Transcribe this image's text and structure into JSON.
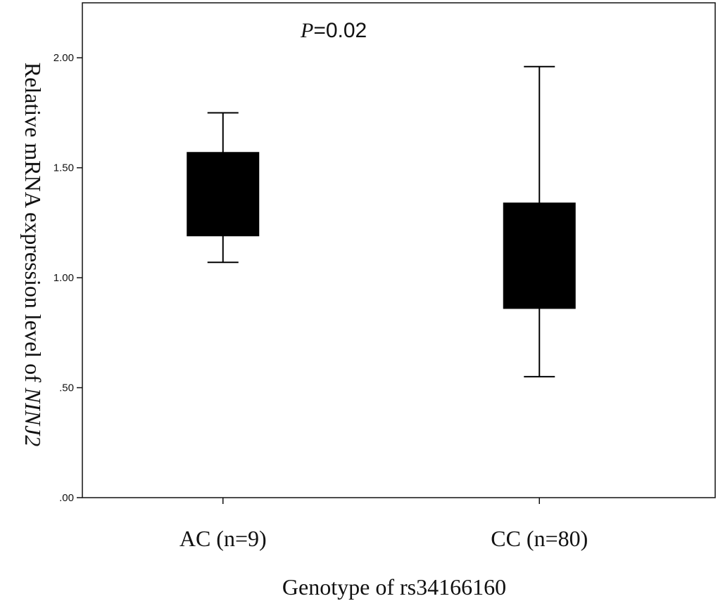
{
  "chart_data": {
    "type": "box",
    "xlabel": "Genotype of rs34166160",
    "ylabel_prefix": "Relative mRNA expression level of ",
    "ylabel_gene": "NINJ2",
    "ylim": [
      0,
      2.25
    ],
    "yticks": [
      0,
      0.5,
      1.0,
      1.5,
      2.0
    ],
    "ytick_labels": [
      ".00",
      ".50",
      "1.00",
      "1.50",
      "2.00"
    ],
    "grid": false,
    "legend": "none",
    "box_color": "#000000",
    "annotation": {
      "p_symbol": "P",
      "p_text": "=0.02"
    },
    "categories": [
      "AC (n=9)",
      "CC (n=80)"
    ],
    "boxes": [
      {
        "category": "AC (n=9)",
        "whisker_low": 1.07,
        "q1": 1.19,
        "q3": 1.57,
        "whisker_high": 1.75
      },
      {
        "category": "CC (n=80)",
        "whisker_low": 0.55,
        "q1": 0.86,
        "q3": 1.34,
        "whisker_high": 1.96
      }
    ]
  }
}
